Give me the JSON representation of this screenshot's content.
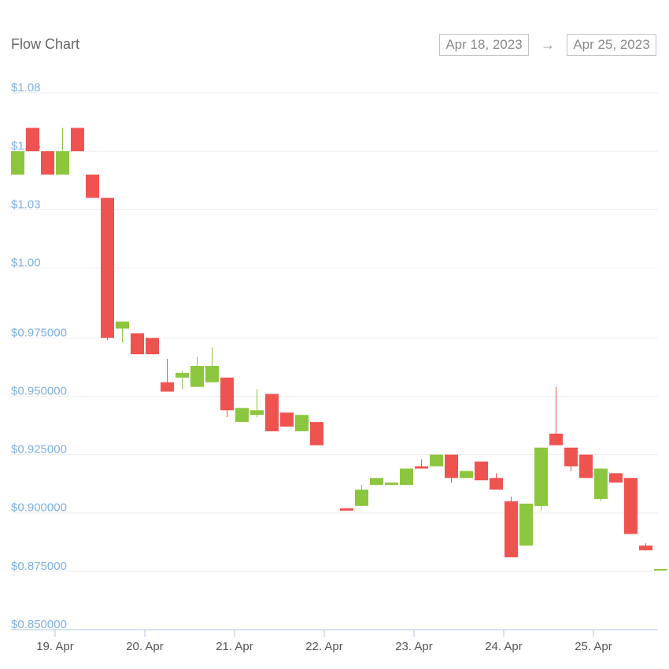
{
  "header": {
    "title": "Flow Chart",
    "start_date": "Apr 18, 2023",
    "end_date": "Apr 25, 2023",
    "arrow_glyph": "→"
  },
  "colors": {
    "up": "#8cc63f",
    "down": "#ef5350",
    "grid": "#eeeeee",
    "axis": "#c9d8ec",
    "ylabel": "#7fb0e0",
    "xlabel": "#555555"
  },
  "chart_data": {
    "type": "candlestick",
    "xlabel": "",
    "ylabel": "",
    "ylim": [
      0.85,
      1.08
    ],
    "y_ticks": [
      {
        "value": 1.08,
        "label": "$1.08"
      },
      {
        "value": 1.055,
        "label": "$1.05"
      },
      {
        "value": 1.03,
        "label": "$1.03"
      },
      {
        "value": 1.005,
        "label": "$1.00"
      },
      {
        "value": 0.975,
        "label": "$0.975000"
      },
      {
        "value": 0.95,
        "label": "$0.950000"
      },
      {
        "value": 0.925,
        "label": "$0.925000"
      },
      {
        "value": 0.9,
        "label": "$0.900000"
      },
      {
        "value": 0.875,
        "label": "$0.875000"
      },
      {
        "value": 0.85,
        "label": "$0.850000"
      }
    ],
    "x_ticks": [
      {
        "label": "19. Apr",
        "position": 2.5
      },
      {
        "label": "20. Apr",
        "position": 8.5
      },
      {
        "label": "21. Apr",
        "position": 14.5
      },
      {
        "label": "22. Apr",
        "position": 20.5
      },
      {
        "label": "23. Apr",
        "position": 26.5
      },
      {
        "label": "24. Apr",
        "position": 32.5
      },
      {
        "label": "25. Apr",
        "position": 38.5
      }
    ],
    "candles": [
      {
        "open": 1.045,
        "high": 1.055,
        "low": 1.045,
        "close": 1.055
      },
      {
        "open": 1.065,
        "high": 1.065,
        "low": 1.055,
        "close": 1.055
      },
      {
        "open": 1.055,
        "high": 1.055,
        "low": 1.045,
        "close": 1.045
      },
      {
        "open": 1.045,
        "high": 1.065,
        "low": 1.045,
        "close": 1.055
      },
      {
        "open": 1.065,
        "high": 1.065,
        "low": 1.055,
        "close": 1.055
      },
      {
        "open": 1.045,
        "high": 1.045,
        "low": 1.035,
        "close": 1.035
      },
      {
        "open": 1.035,
        "high": 1.035,
        "low": 0.974,
        "close": 0.975
      },
      {
        "open": 0.979,
        "high": 0.982,
        "low": 0.973,
        "close": 0.982
      },
      {
        "open": 0.977,
        "high": 0.977,
        "low": 0.968,
        "close": 0.968
      },
      {
        "open": 0.975,
        "high": 0.975,
        "low": 0.968,
        "close": 0.968
      },
      {
        "open": 0.956,
        "high": 0.966,
        "low": 0.952,
        "close": 0.952
      },
      {
        "open": 0.958,
        "high": 0.961,
        "low": 0.953,
        "close": 0.96
      },
      {
        "open": 0.954,
        "high": 0.967,
        "low": 0.954,
        "close": 0.963
      },
      {
        "open": 0.956,
        "high": 0.971,
        "low": 0.956,
        "close": 0.963
      },
      {
        "open": 0.958,
        "high": 0.958,
        "low": 0.941,
        "close": 0.944
      },
      {
        "open": 0.939,
        "high": 0.945,
        "low": 0.939,
        "close": 0.945
      },
      {
        "open": 0.942,
        "high": 0.953,
        "low": 0.941,
        "close": 0.944
      },
      {
        "open": 0.951,
        "high": 0.951,
        "low": 0.935,
        "close": 0.935
      },
      {
        "open": 0.943,
        "high": 0.943,
        "low": 0.937,
        "close": 0.937
      },
      {
        "open": 0.935,
        "high": 0.942,
        "low": 0.935,
        "close": 0.942
      },
      {
        "open": 0.939,
        "high": 0.939,
        "low": 0.929,
        "close": 0.929
      },
      null,
      {
        "open": 0.902,
        "high": 0.902,
        "low": 0.901,
        "close": 0.901
      },
      {
        "open": 0.903,
        "high": 0.912,
        "low": 0.903,
        "close": 0.91
      },
      {
        "open": 0.912,
        "high": 0.915,
        "low": 0.912,
        "close": 0.915
      },
      {
        "open": 0.912,
        "high": 0.913,
        "low": 0.912,
        "close": 0.913
      },
      {
        "open": 0.912,
        "high": 0.919,
        "low": 0.912,
        "close": 0.919
      },
      {
        "open": 0.92,
        "high": 0.923,
        "low": 0.919,
        "close": 0.919
      },
      {
        "open": 0.92,
        "high": 0.925,
        "low": 0.92,
        "close": 0.925
      },
      {
        "open": 0.925,
        "high": 0.925,
        "low": 0.913,
        "close": 0.915
      },
      {
        "open": 0.915,
        "high": 0.918,
        "low": 0.915,
        "close": 0.918
      },
      {
        "open": 0.922,
        "high": 0.922,
        "low": 0.914,
        "close": 0.914
      },
      {
        "open": 0.915,
        "high": 0.917,
        "low": 0.91,
        "close": 0.91
      },
      {
        "open": 0.905,
        "high": 0.907,
        "low": 0.881,
        "close": 0.881
      },
      {
        "open": 0.886,
        "high": 0.904,
        "low": 0.886,
        "close": 0.904
      },
      {
        "open": 0.903,
        "high": 0.928,
        "low": 0.901,
        "close": 0.928
      },
      {
        "open": 0.934,
        "high": 0.954,
        "low": 0.929,
        "close": 0.929
      },
      {
        "open": 0.928,
        "high": 0.928,
        "low": 0.918,
        "close": 0.92
      },
      {
        "open": 0.925,
        "high": 0.925,
        "low": 0.915,
        "close": 0.915
      },
      {
        "open": 0.906,
        "high": 0.919,
        "low": 0.905,
        "close": 0.919
      },
      {
        "open": 0.917,
        "high": 0.917,
        "low": 0.913,
        "close": 0.913
      },
      {
        "open": 0.915,
        "high": 0.915,
        "low": 0.891,
        "close": 0.891
      },
      {
        "open": 0.886,
        "high": 0.887,
        "low": 0.884,
        "close": 0.884
      },
      {
        "open": 0.876,
        "high": 0.876,
        "low": 0.876,
        "close": 0.876
      }
    ]
  }
}
